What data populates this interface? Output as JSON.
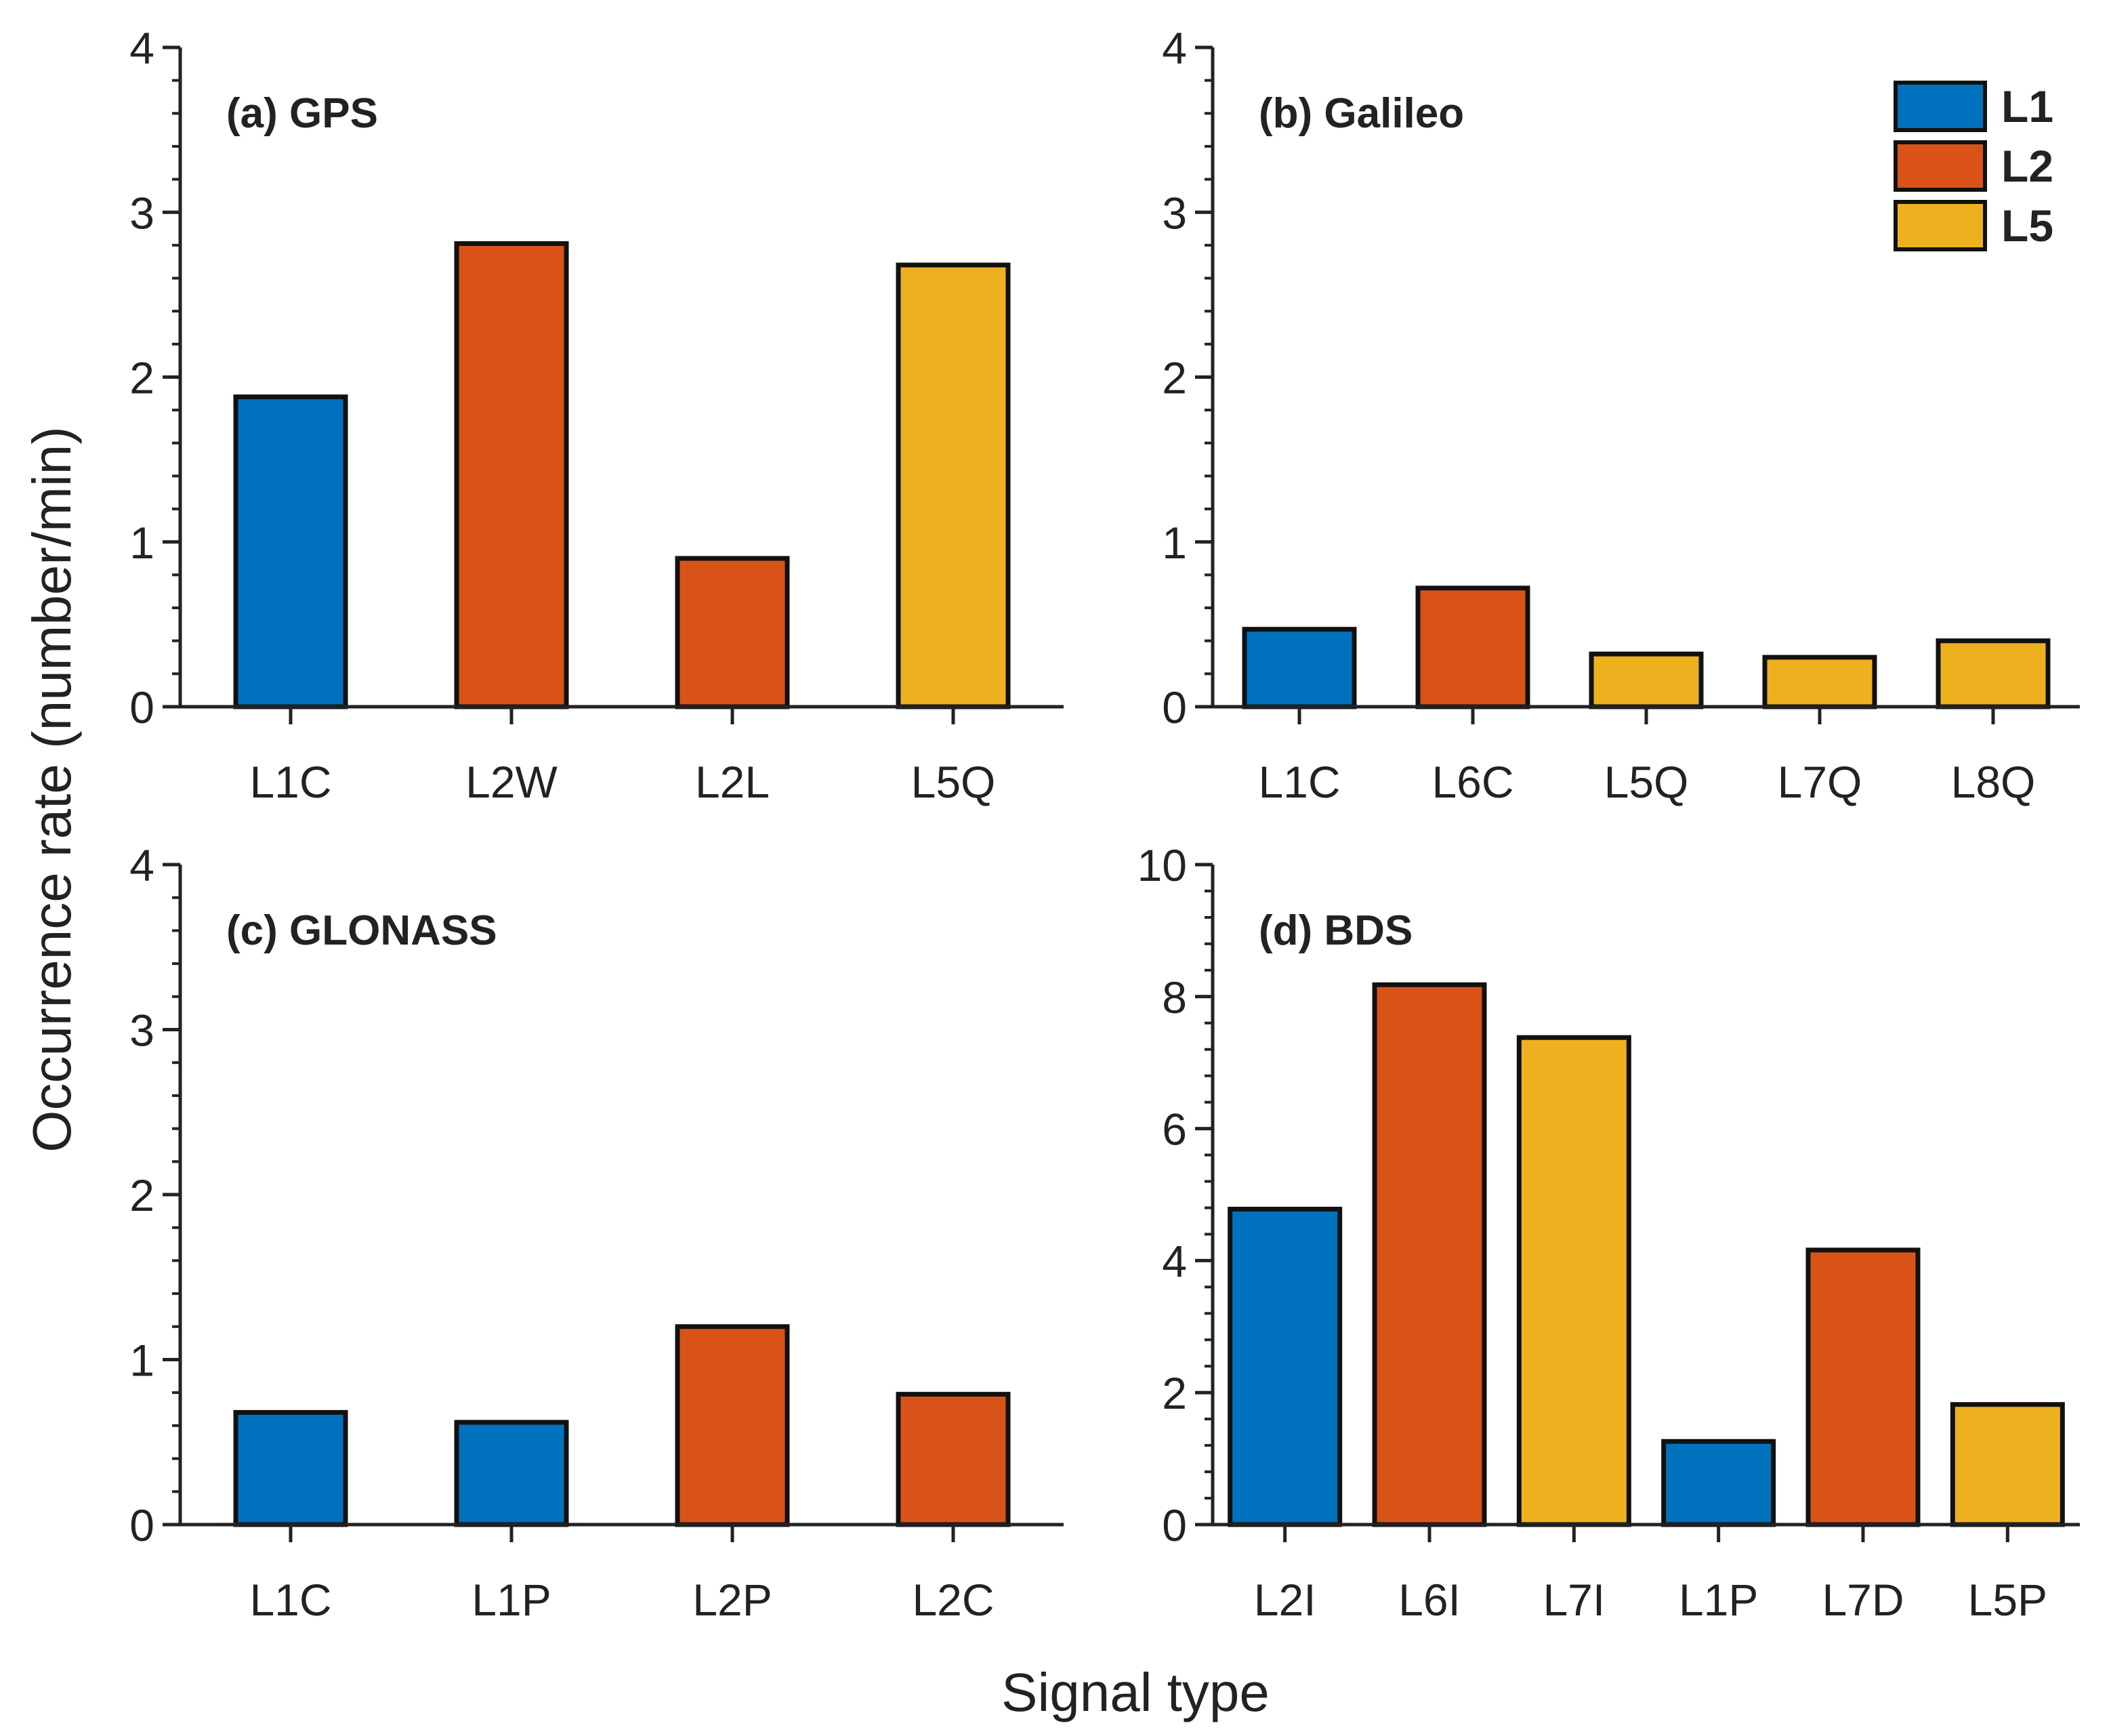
{
  "figure": {
    "ylabel": "Occurrence rate (number/min)",
    "xlabel": "Signal type"
  },
  "legend": {
    "placement": "top-right of panel (b)",
    "items": [
      {
        "label": "L1",
        "color": "#0072BD"
      },
      {
        "label": "L2",
        "color": "#D95319"
      },
      {
        "label": "L5",
        "color": "#EDB120"
      }
    ]
  },
  "chart_data": [
    {
      "type": "bar",
      "title": "(a) GPS",
      "categories": [
        "L1C",
        "L2W",
        "L2L",
        "L5Q"
      ],
      "values": [
        1.88,
        2.81,
        0.9,
        2.68
      ],
      "bands": [
        "L1",
        "L2",
        "L2",
        "L5"
      ],
      "ylim": [
        0,
        4
      ],
      "yticks": [
        0,
        1,
        2,
        3,
        4
      ]
    },
    {
      "type": "bar",
      "title": "(b) Galileo",
      "categories": [
        "L1C",
        "L6C",
        "L5Q",
        "L7Q",
        "L8Q"
      ],
      "values": [
        0.47,
        0.72,
        0.32,
        0.3,
        0.4
      ],
      "bands": [
        "L1",
        "L2",
        "L5",
        "L5",
        "L5"
      ],
      "ylim": [
        0,
        4
      ],
      "yticks": [
        0,
        1,
        2,
        3,
        4
      ]
    },
    {
      "type": "bar",
      "title": "(c) GLONASS",
      "categories": [
        "L1C",
        "L1P",
        "L2P",
        "L2C"
      ],
      "values": [
        0.68,
        0.62,
        1.2,
        0.79
      ],
      "bands": [
        "L1",
        "L1",
        "L2",
        "L2"
      ],
      "ylim": [
        0,
        4
      ],
      "yticks": [
        0,
        1,
        2,
        3,
        4
      ]
    },
    {
      "type": "bar",
      "title": "(d) BDS",
      "categories": [
        "L2I",
        "L6I",
        "L7I",
        "L1P",
        "L7D",
        "L5P"
      ],
      "values": [
        4.78,
        8.18,
        7.38,
        1.26,
        4.16,
        1.82
      ],
      "bands": [
        "L1",
        "L2",
        "L5",
        "L1",
        "L2",
        "L5"
      ],
      "ylim": [
        0,
        10
      ],
      "yticks": [
        0,
        2,
        4,
        6,
        8,
        10
      ]
    }
  ]
}
